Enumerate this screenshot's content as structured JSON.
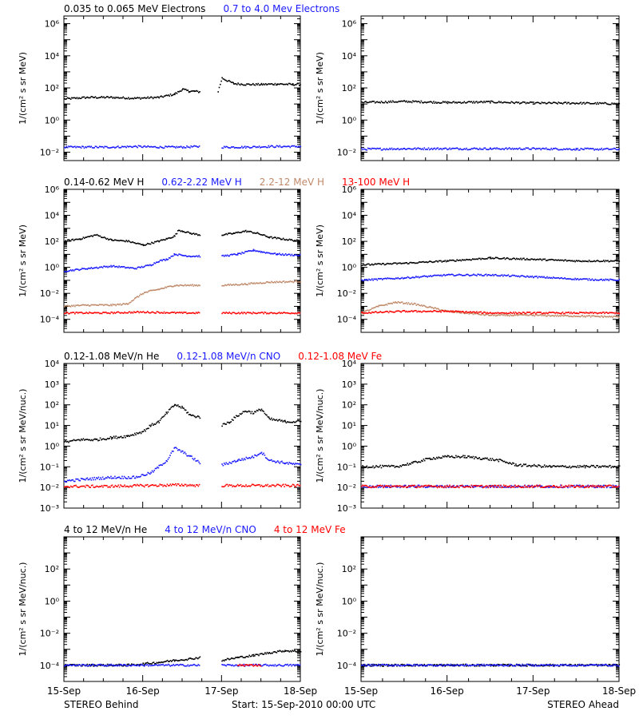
{
  "colors": {
    "axis": "#000000",
    "black": "#000000",
    "blue": "#1a1aff",
    "tan": "#c08a6a",
    "red": "#ff0000"
  },
  "footer": {
    "left": "STEREO Behind",
    "center": "Start: 15-Sep-2010 00:00 UTC",
    "right": "STEREO Ahead"
  },
  "chart_data": [
    {
      "type": "scatter",
      "panel": "electrons-behind",
      "ylabel": "1/(cm² s sr MeV)",
      "yscale": "log",
      "ylim": [
        0.003,
        3000000
      ],
      "yticks": [
        {
          "v": 0.01,
          "t": "10⁻²"
        },
        {
          "v": 1,
          "t": "10⁰"
        },
        {
          "v": 100,
          "t": "10²"
        },
        {
          "v": 10000,
          "t": "10⁴"
        },
        {
          "v": 1000000,
          "t": "10⁶"
        }
      ],
      "xlim": [
        0,
        3
      ],
      "legend": [
        {
          "text": "0.035 to 0.065 MeV Electrons",
          "color": "black"
        },
        {
          "text": "0.7 to 4.0 Mev Electrons",
          "color": "blue"
        }
      ],
      "series": [
        {
          "name": "0.035 to 0.065 MeV Electrons",
          "color": "black",
          "x": [
            0.0,
            0.3,
            0.6,
            0.9,
            1.2,
            1.4,
            1.5,
            1.58,
            1.65,
            1.72,
            1.9,
            1.95,
            2.0,
            2.05,
            2.15,
            2.3,
            2.5,
            2.7,
            2.9,
            3.0
          ],
          "y": [
            20,
            25,
            25,
            22,
            25,
            40,
            80,
            60,
            60,
            55,
            null,
            60,
            400,
            300,
            180,
            160,
            160,
            170,
            160,
            160
          ]
        },
        {
          "name": "0.7 to 4.0 Mev Electrons",
          "color": "blue",
          "x": [
            0.0,
            0.3,
            0.6,
            0.9,
            1.2,
            1.5,
            1.72,
            1.9,
            2.0,
            2.3,
            2.6,
            3.0
          ],
          "y": [
            0.02,
            0.02,
            0.02,
            0.022,
            0.02,
            0.02,
            0.022,
            null,
            0.02,
            0.02,
            0.022,
            0.022
          ]
        }
      ]
    },
    {
      "type": "scatter",
      "panel": "electrons-ahead",
      "ylabel": "1/(cm² s sr MeV)",
      "yscale": "log",
      "ylim": [
        0.003,
        3000000
      ],
      "yticks": [
        {
          "v": 0.01,
          "t": "10⁻²"
        },
        {
          "v": 1,
          "t": "10⁰"
        },
        {
          "v": 100,
          "t": "10²"
        },
        {
          "v": 10000,
          "t": "10⁴"
        },
        {
          "v": 1000000,
          "t": "10⁶"
        }
      ],
      "xlim": [
        0,
        3
      ],
      "legend": [],
      "series": [
        {
          "name": "",
          "color": "black",
          "x": [
            0.0,
            0.5,
            1.0,
            1.5,
            2.0,
            2.5,
            3.0
          ],
          "y": [
            12,
            14,
            12,
            13,
            11,
            11,
            10
          ]
        },
        {
          "name": "",
          "color": "blue",
          "x": [
            0.0,
            0.5,
            1.0,
            1.5,
            2.0,
            2.5,
            3.0
          ],
          "y": [
            0.015,
            0.016,
            0.016,
            0.016,
            0.016,
            0.015,
            0.015
          ]
        }
      ]
    },
    {
      "type": "scatter",
      "panel": "protons-behind",
      "ylabel": "1/(cm² s sr MeV)",
      "yscale": "log",
      "ylim": [
        1e-05,
        1000000
      ],
      "yticks": [
        {
          "v": 0.0001,
          "t": "10⁻⁴"
        },
        {
          "v": 0.01,
          "t": "10⁻²"
        },
        {
          "v": 1,
          "t": "10⁰"
        },
        {
          "v": 100,
          "t": "10²"
        },
        {
          "v": 10000,
          "t": "10⁴"
        },
        {
          "v": 1000000,
          "t": "10⁶"
        }
      ],
      "xlim": [
        0,
        3
      ],
      "legend": [
        {
          "text": "0.14-0.62 MeV H",
          "color": "black"
        },
        {
          "text": "0.62-2.22 MeV H",
          "color": "blue"
        },
        {
          "text": "2.2-12 MeV H",
          "color": "tan"
        },
        {
          "text": "13-100 MeV H",
          "color": "red"
        }
      ],
      "series": [
        {
          "name": "0.14-0.62 MeV H",
          "color": "black",
          "x": [
            0.0,
            0.2,
            0.4,
            0.6,
            0.8,
            1.0,
            1.2,
            1.3,
            1.4,
            1.45,
            1.5,
            1.6,
            1.72,
            1.9,
            2.0,
            2.15,
            2.3,
            2.45,
            2.6,
            2.75,
            3.0
          ],
          "y": [
            100,
            150,
            300,
            120,
            100,
            50,
            100,
            150,
            250,
            700,
            600,
            400,
            300,
            null,
            300,
            400,
            600,
            400,
            200,
            150,
            100
          ]
        },
        {
          "name": "0.62-2.22 MeV H",
          "color": "blue",
          "x": [
            0.0,
            0.3,
            0.6,
            0.9,
            1.1,
            1.2,
            1.3,
            1.4,
            1.5,
            1.6,
            1.72,
            1.9,
            2.0,
            2.2,
            2.4,
            2.5,
            2.7,
            3.0
          ],
          "y": [
            0.5,
            0.8,
            1.2,
            0.8,
            1.5,
            3,
            4,
            10,
            8,
            7,
            7,
            null,
            7,
            10,
            20,
            15,
            10,
            8
          ]
        },
        {
          "name": "2.2-12 MeV H",
          "color": "tan",
          "x": [
            0.0,
            0.3,
            0.6,
            0.8,
            0.9,
            1.0,
            1.1,
            1.2,
            1.4,
            1.72,
            1.9,
            2.0,
            2.3,
            2.6,
            3.0
          ],
          "y": [
            0.001,
            0.0012,
            0.0012,
            0.0015,
            0.004,
            0.01,
            0.015,
            0.02,
            0.04,
            0.04,
            null,
            0.04,
            0.05,
            0.07,
            0.08
          ]
        },
        {
          "name": "13-100 MeV H",
          "color": "red",
          "x": [
            0.0,
            0.5,
            1.0,
            1.5,
            1.72,
            1.9,
            2.0,
            2.5,
            3.0
          ],
          "y": [
            0.0003,
            0.0003,
            0.00035,
            0.0003,
            0.0003,
            null,
            0.0003,
            0.0003,
            0.0003
          ]
        }
      ]
    },
    {
      "type": "scatter",
      "panel": "protons-ahead",
      "ylabel": "1/(cm² s sr MeV)",
      "yscale": "log",
      "ylim": [
        1e-05,
        1000000
      ],
      "yticks": [
        {
          "v": 0.0001,
          "t": "10⁻⁴"
        },
        {
          "v": 0.01,
          "t": "10⁻²"
        },
        {
          "v": 1,
          "t": "10⁰"
        },
        {
          "v": 100,
          "t": "10²"
        },
        {
          "v": 10000,
          "t": "10⁴"
        },
        {
          "v": 1000000,
          "t": "10⁶"
        }
      ],
      "xlim": [
        0,
        3
      ],
      "legend": [],
      "series": [
        {
          "name": "",
          "color": "black",
          "x": [
            0.0,
            0.5,
            1.0,
            1.5,
            2.0,
            2.5,
            3.0
          ],
          "y": [
            1.5,
            2,
            3,
            5,
            4,
            3,
            3
          ]
        },
        {
          "name": "",
          "color": "blue",
          "x": [
            0.0,
            0.5,
            1.0,
            1.5,
            2.0,
            2.5,
            3.0
          ],
          "y": [
            0.1,
            0.15,
            0.25,
            0.25,
            0.18,
            0.12,
            0.1
          ]
        },
        {
          "name": "",
          "color": "tan",
          "x": [
            0.0,
            0.2,
            0.4,
            0.6,
            0.8,
            1.0,
            1.2,
            1.5,
            2.0,
            3.0
          ],
          "y": [
            0.0003,
            0.001,
            0.002,
            0.0015,
            0.0008,
            0.0004,
            0.0003,
            0.0002,
            0.0002,
            0.00015
          ]
        },
        {
          "name": "",
          "color": "red",
          "x": [
            0.0,
            0.5,
            1.0,
            1.5,
            2.0,
            2.5,
            3.0
          ],
          "y": [
            0.0003,
            0.0004,
            0.0004,
            0.0003,
            0.0003,
            0.0003,
            0.0003
          ]
        }
      ]
    },
    {
      "type": "scatter",
      "panel": "heavy-low-behind",
      "ylabel": "1/(cm² s sr MeV/nuc.)",
      "yscale": "log",
      "ylim": [
        0.001,
        10000
      ],
      "yticks": [
        {
          "v": 0.001,
          "t": "10⁻³"
        },
        {
          "v": 0.01,
          "t": "10⁻²"
        },
        {
          "v": 0.1,
          "t": "10⁻¹"
        },
        {
          "v": 1,
          "t": "10⁰"
        },
        {
          "v": 10,
          "t": "10¹"
        },
        {
          "v": 100,
          "t": "10²"
        },
        {
          "v": 1000,
          "t": "10³"
        },
        {
          "v": 10000,
          "t": "10⁴"
        }
      ],
      "xlim": [
        0,
        3
      ],
      "legend": [
        {
          "text": "0.12-1.08 MeV/n He",
          "color": "black"
        },
        {
          "text": "0.12-1.08 MeV/n CNO",
          "color": "blue"
        },
        {
          "text": "0.12-1.08 MeV Fe",
          "color": "red"
        }
      ],
      "series": [
        {
          "name": "0.12-1.08 MeV/n He",
          "color": "black",
          "x": [
            0.0,
            0.2,
            0.4,
            0.6,
            0.8,
            1.0,
            1.1,
            1.2,
            1.3,
            1.4,
            1.5,
            1.6,
            1.72,
            1.9,
            2.0,
            2.1,
            2.2,
            2.3,
            2.4,
            2.5,
            2.6,
            2.8,
            3.0
          ],
          "y": [
            1.5,
            2,
            2,
            2.5,
            3,
            5,
            10,
            15,
            40,
            100,
            70,
            30,
            25,
            null,
            10,
            15,
            30,
            50,
            40,
            60,
            20,
            15,
            15
          ]
        },
        {
          "name": "0.12-1.08 MeV/n CNO",
          "color": "blue",
          "x": [
            0.0,
            0.3,
            0.6,
            0.9,
            1.1,
            1.2,
            1.3,
            1.4,
            1.5,
            1.6,
            1.72,
            1.9,
            2.0,
            2.2,
            2.4,
            2.5,
            2.6,
            2.8,
            3.0
          ],
          "y": [
            0.02,
            0.025,
            0.03,
            0.03,
            0.05,
            0.1,
            0.2,
            0.8,
            0.5,
            0.3,
            0.15,
            null,
            0.12,
            0.2,
            0.3,
            0.5,
            0.2,
            0.15,
            0.12
          ]
        },
        {
          "name": "0.12-1.08 MeV Fe",
          "color": "red",
          "x": [
            0.0,
            0.5,
            1.0,
            1.5,
            1.72,
            1.9,
            2.0,
            2.5,
            3.0
          ],
          "y": [
            0.011,
            0.011,
            0.012,
            0.013,
            0.012,
            null,
            0.012,
            0.012,
            0.012
          ]
        }
      ]
    },
    {
      "type": "scatter",
      "panel": "heavy-low-ahead",
      "ylabel": "1/(cm² s sr MeV/nuc.)",
      "yscale": "log",
      "ylim": [
        0.001,
        10000
      ],
      "yticks": [
        {
          "v": 0.001,
          "t": "10⁻³"
        },
        {
          "v": 0.01,
          "t": "10⁻²"
        },
        {
          "v": 0.1,
          "t": "10⁻¹"
        },
        {
          "v": 1,
          "t": "10⁰"
        },
        {
          "v": 10,
          "t": "10¹"
        },
        {
          "v": 100,
          "t": "10²"
        },
        {
          "v": 1000,
          "t": "10³"
        },
        {
          "v": 10000,
          "t": "10⁴"
        }
      ],
      "xlim": [
        0,
        3
      ],
      "legend": [],
      "series": [
        {
          "name": "",
          "color": "black",
          "x": [
            0.0,
            0.4,
            0.6,
            0.8,
            1.0,
            1.2,
            1.4,
            1.6,
            1.8,
            2.2,
            2.6,
            3.0
          ],
          "y": [
            0.1,
            0.1,
            0.15,
            0.25,
            0.3,
            0.3,
            0.25,
            0.2,
            0.12,
            0.1,
            0.1,
            0.1
          ]
        },
        {
          "name": "",
          "color": "blue",
          "x": [
            0.0,
            0.5,
            1.0,
            1.5,
            2.0,
            2.5,
            3.0
          ],
          "y": [
            0.011,
            0.011,
            0.011,
            0.011,
            0.011,
            0.011,
            0.011
          ]
        },
        {
          "name": "",
          "color": "red",
          "x": [
            0.0,
            1.0,
            2.0,
            3.0
          ],
          "y": [
            0.011,
            0.011,
            0.011,
            0.011
          ]
        }
      ]
    },
    {
      "type": "scatter",
      "panel": "heavy-high-behind",
      "ylabel": "1/(cm² s sr MeV/nuc.)",
      "yscale": "log",
      "ylim": [
        1e-05,
        10000
      ],
      "yticks": [
        {
          "v": 0.0001,
          "t": "10⁻⁴"
        },
        {
          "v": 0.01,
          "t": "10⁻²"
        },
        {
          "v": 1,
          "t": "10⁰"
        },
        {
          "v": 100,
          "t": "10²"
        }
      ],
      "xlim": [
        0,
        3
      ],
      "legend": [
        {
          "text": "4 to 12 MeV/n He",
          "color": "black"
        },
        {
          "text": "4 to 12 MeV/n CNO",
          "color": "blue"
        },
        {
          "text": "4 to 12 MeV Fe",
          "color": "red"
        }
      ],
      "series": [
        {
          "name": "4 to 12 MeV/n He",
          "color": "black",
          "x": [
            0.0,
            0.4,
            0.8,
            1.0,
            1.2,
            1.4,
            1.6,
            1.72,
            1.9,
            2.0,
            2.2,
            2.4,
            2.6,
            2.8,
            3.0
          ],
          "y": [
            0.0001,
            0.0001,
            0.0001,
            0.00012,
            0.00015,
            0.0002,
            0.00025,
            0.0003,
            null,
            0.0002,
            0.0003,
            0.0004,
            0.0006,
            0.0008,
            0.0007
          ]
        },
        {
          "name": "4 to 12 MeV/n CNO",
          "color": "blue",
          "x": [
            0.0,
            0.5,
            1.0,
            1.5,
            1.72,
            1.9,
            2.0,
            2.5,
            3.0
          ],
          "y": [
            0.0001,
            0.0001,
            0.0001,
            0.0001,
            0.0001,
            null,
            0.0001,
            0.0001,
            0.0001
          ]
        },
        {
          "name": "4 to 12 MeV Fe",
          "color": "red",
          "x": [
            2.2,
            2.5
          ],
          "y": [
            0.0001,
            0.0001
          ]
        }
      ]
    },
    {
      "type": "scatter",
      "panel": "heavy-high-ahead",
      "ylabel": "1/(cm² s sr MeV/nuc.)",
      "yscale": "log",
      "ylim": [
        1e-05,
        10000
      ],
      "yticks": [
        {
          "v": 0.0001,
          "t": "10⁻⁴"
        },
        {
          "v": 0.01,
          "t": "10⁻²"
        },
        {
          "v": 1,
          "t": "10⁰"
        },
        {
          "v": 100,
          "t": "10²"
        }
      ],
      "xlim": [
        0,
        3
      ],
      "legend": [],
      "series": [
        {
          "name": "",
          "color": "black",
          "x": [
            0.0,
            0.5,
            1.0,
            1.5,
            2.0,
            2.5,
            3.0
          ],
          "y": [
            0.0001,
            0.0001,
            0.0001,
            0.0001,
            0.0001,
            0.0001,
            0.0001
          ]
        },
        {
          "name": "",
          "color": "blue",
          "x": [
            0.0,
            1.0,
            2.0,
            3.0
          ],
          "y": [
            0.0001,
            0.0001,
            0.0001,
            0.0001
          ]
        }
      ]
    }
  ],
  "xaxis": {
    "ticks": [
      {
        "v": 0,
        "t": "15-Sep"
      },
      {
        "v": 1,
        "t": "16-Sep"
      },
      {
        "v": 2,
        "t": "17-Sep"
      },
      {
        "v": 3,
        "t": "18-Sep"
      }
    ]
  }
}
